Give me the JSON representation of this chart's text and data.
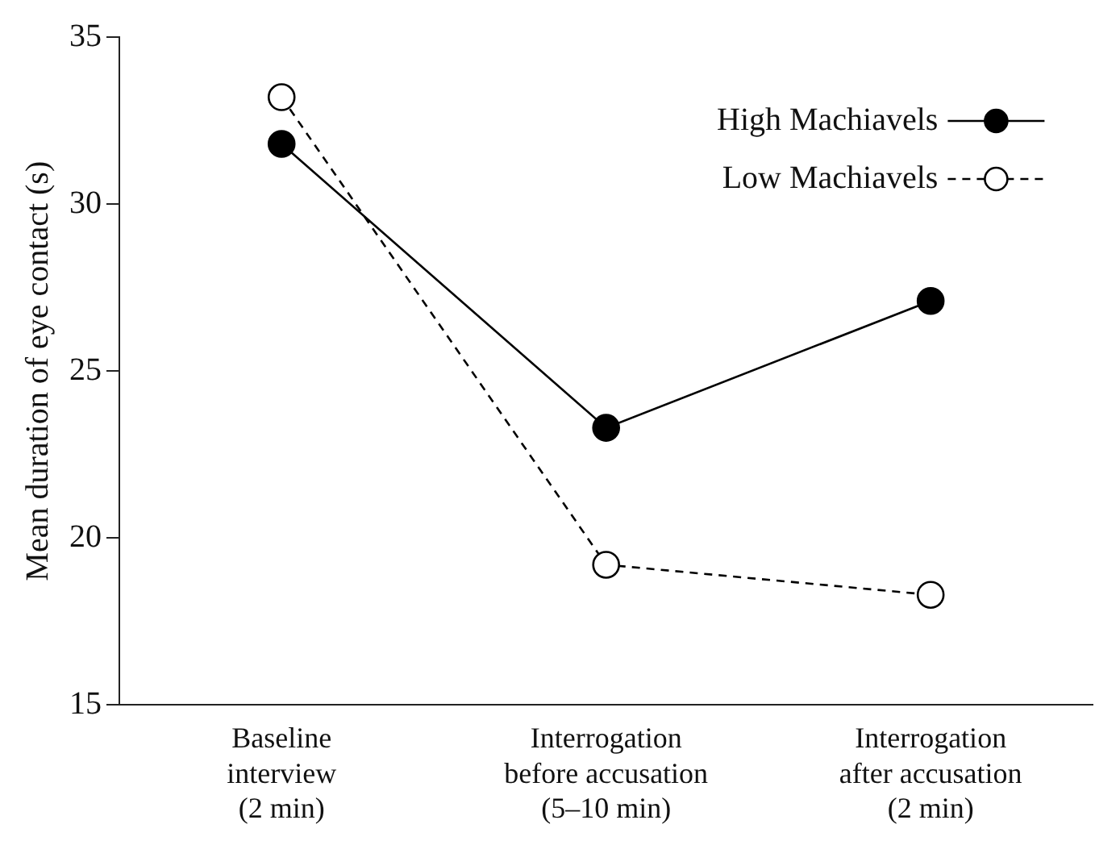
{
  "chart_data": {
    "type": "line",
    "ylabel": "Mean duration of eye contact (s)",
    "categories": [
      "Baseline\ninterview\n(2 min)",
      "Interrogation\nbefore accusation\n(5–10 min)",
      "Interrogation\nafter accusation\n(2 min)"
    ],
    "series": [
      {
        "name": "High Machiavels",
        "color": "#000000",
        "line_style": "solid",
        "values": [
          31.8,
          23.3,
          27.1
        ]
      },
      {
        "name": "Low Machiavels",
        "color": "#000000",
        "line_style": "dashed",
        "values": [
          33.2,
          19.2,
          18.3
        ]
      }
    ],
    "ylim": [
      15,
      35
    ],
    "yticks": [
      15,
      20,
      25,
      30,
      35
    ],
    "grid": false,
    "legend": "top right",
    "marker": "circle"
  }
}
